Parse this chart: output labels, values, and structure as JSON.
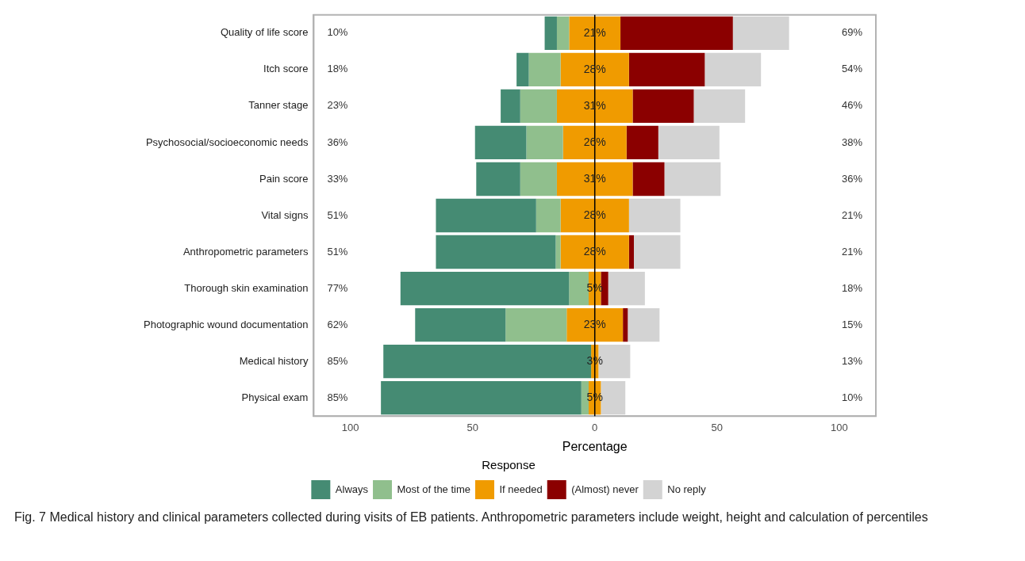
{
  "chart_data": {
    "type": "bar",
    "orientation": "horizontal",
    "xlabel": "Percentage",
    "legend_title": "Response",
    "legend": "bottom",
    "grid": false,
    "categories": [
      "Quality of life score",
      "Itch score",
      "Tanner stage",
      "Psychosocial/socioeconomic needs",
      "Pain score",
      "Vital signs",
      "Anthropometric parameters",
      "Thorough skin examination",
      "Photographic wound documentation",
      "Medical history",
      "Physical exam"
    ],
    "xlim": [
      -115,
      115
    ],
    "xticks": [
      {
        "value": -100,
        "label": "100"
      },
      {
        "value": -50,
        "label": "50"
      },
      0,
      50,
      100
    ],
    "series": [
      {
        "name": "Always",
        "color": "#458b73",
        "values": [
          5,
          5,
          8,
          21,
          18,
          41,
          49,
          69,
          37,
          85,
          82
        ],
        "base": [
          -20.5,
          -32,
          -38.5,
          -49,
          -48.5,
          -65,
          -65,
          -79.5,
          -73.5,
          -86.5,
          -87.5
        ]
      },
      {
        "name": "Most of the time",
        "color": "#90bf8d",
        "values": [
          5,
          13,
          15,
          15,
          15,
          10,
          2,
          8,
          25,
          null,
          3
        ],
        "base": [
          -15.5,
          -27,
          -30.5,
          -28,
          -30.5,
          -24,
          -16,
          -10.5,
          -36.5,
          null,
          -5.5
        ]
      },
      {
        "name": "If needed",
        "color": "#f09b00",
        "values": [
          21,
          28,
          31,
          26,
          31,
          28,
          28,
          5,
          23,
          3,
          5
        ],
        "base": [
          -10.5,
          -14,
          -15.5,
          -13,
          -15.5,
          -14,
          -14,
          -2.5,
          -11.5,
          -1.5,
          -2.5
        ],
        "value_labels": [
          "21%",
          "28%",
          "31%",
          "26%",
          "31%",
          "28%",
          "28%",
          "5%",
          "23%",
          "3%",
          "5%"
        ]
      },
      {
        "name": "(Almost) never",
        "color": "#8b0000",
        "values": [
          46,
          31,
          25,
          13,
          13,
          null,
          2,
          3,
          2,
          null,
          null
        ],
        "base": [
          10.5,
          14,
          15.5,
          13,
          15.5,
          null,
          14,
          2.5,
          11.5,
          null,
          null
        ]
      },
      {
        "name": "No reply",
        "color": "#d3d3d3",
        "values": [
          23,
          23,
          21,
          25,
          23,
          21,
          19,
          15,
          13,
          13,
          10
        ],
        "base": [
          56.5,
          45,
          40.5,
          26,
          28.5,
          14,
          16,
          5.5,
          13.5,
          1.5,
          2.5
        ]
      }
    ],
    "ref_lines": [
      {
        "axis": "x",
        "value": 0,
        "color": "#000000"
      }
    ],
    "annotations": [
      "10%",
      "18%",
      "23%",
      "36%",
      "33%",
      "51%",
      "51%",
      "77%",
      "62%",
      "85%",
      "85%",
      "69%",
      "54%",
      "46%",
      "38%",
      "36%",
      "21%",
      "21%",
      "18%",
      "15%",
      "13%",
      "10%",
      "Fig. 7 Medical history and clinical parameters collected during visits of EB patients. Anthropometric parameters include weight, height and calculation of percentiles"
    ]
  }
}
